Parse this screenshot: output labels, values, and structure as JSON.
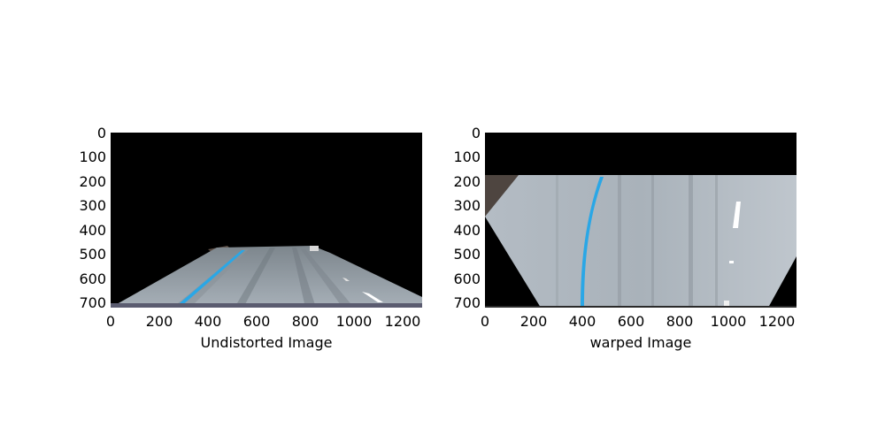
{
  "figure": {
    "panels": [
      {
        "xlabel": "Undistorted Image",
        "xticks": [
          "0",
          "200",
          "400",
          "600",
          "800",
          "1000",
          "1200"
        ],
        "yticks": [
          "0",
          "100",
          "200",
          "300",
          "400",
          "500",
          "600",
          "700"
        ],
        "image": "undistorted road view"
      },
      {
        "xlabel": "warped Image",
        "xticks": [
          "0",
          "200",
          "400",
          "600",
          "800",
          "1000",
          "1200"
        ],
        "yticks": [
          "0",
          "100",
          "200",
          "300",
          "400",
          "500",
          "600",
          "700"
        ],
        "image": "bird's-eye warped road view"
      }
    ],
    "colors": {
      "lane_blue": "#2aa7e6",
      "road": "#9aa4ad",
      "background": "#000000"
    }
  }
}
